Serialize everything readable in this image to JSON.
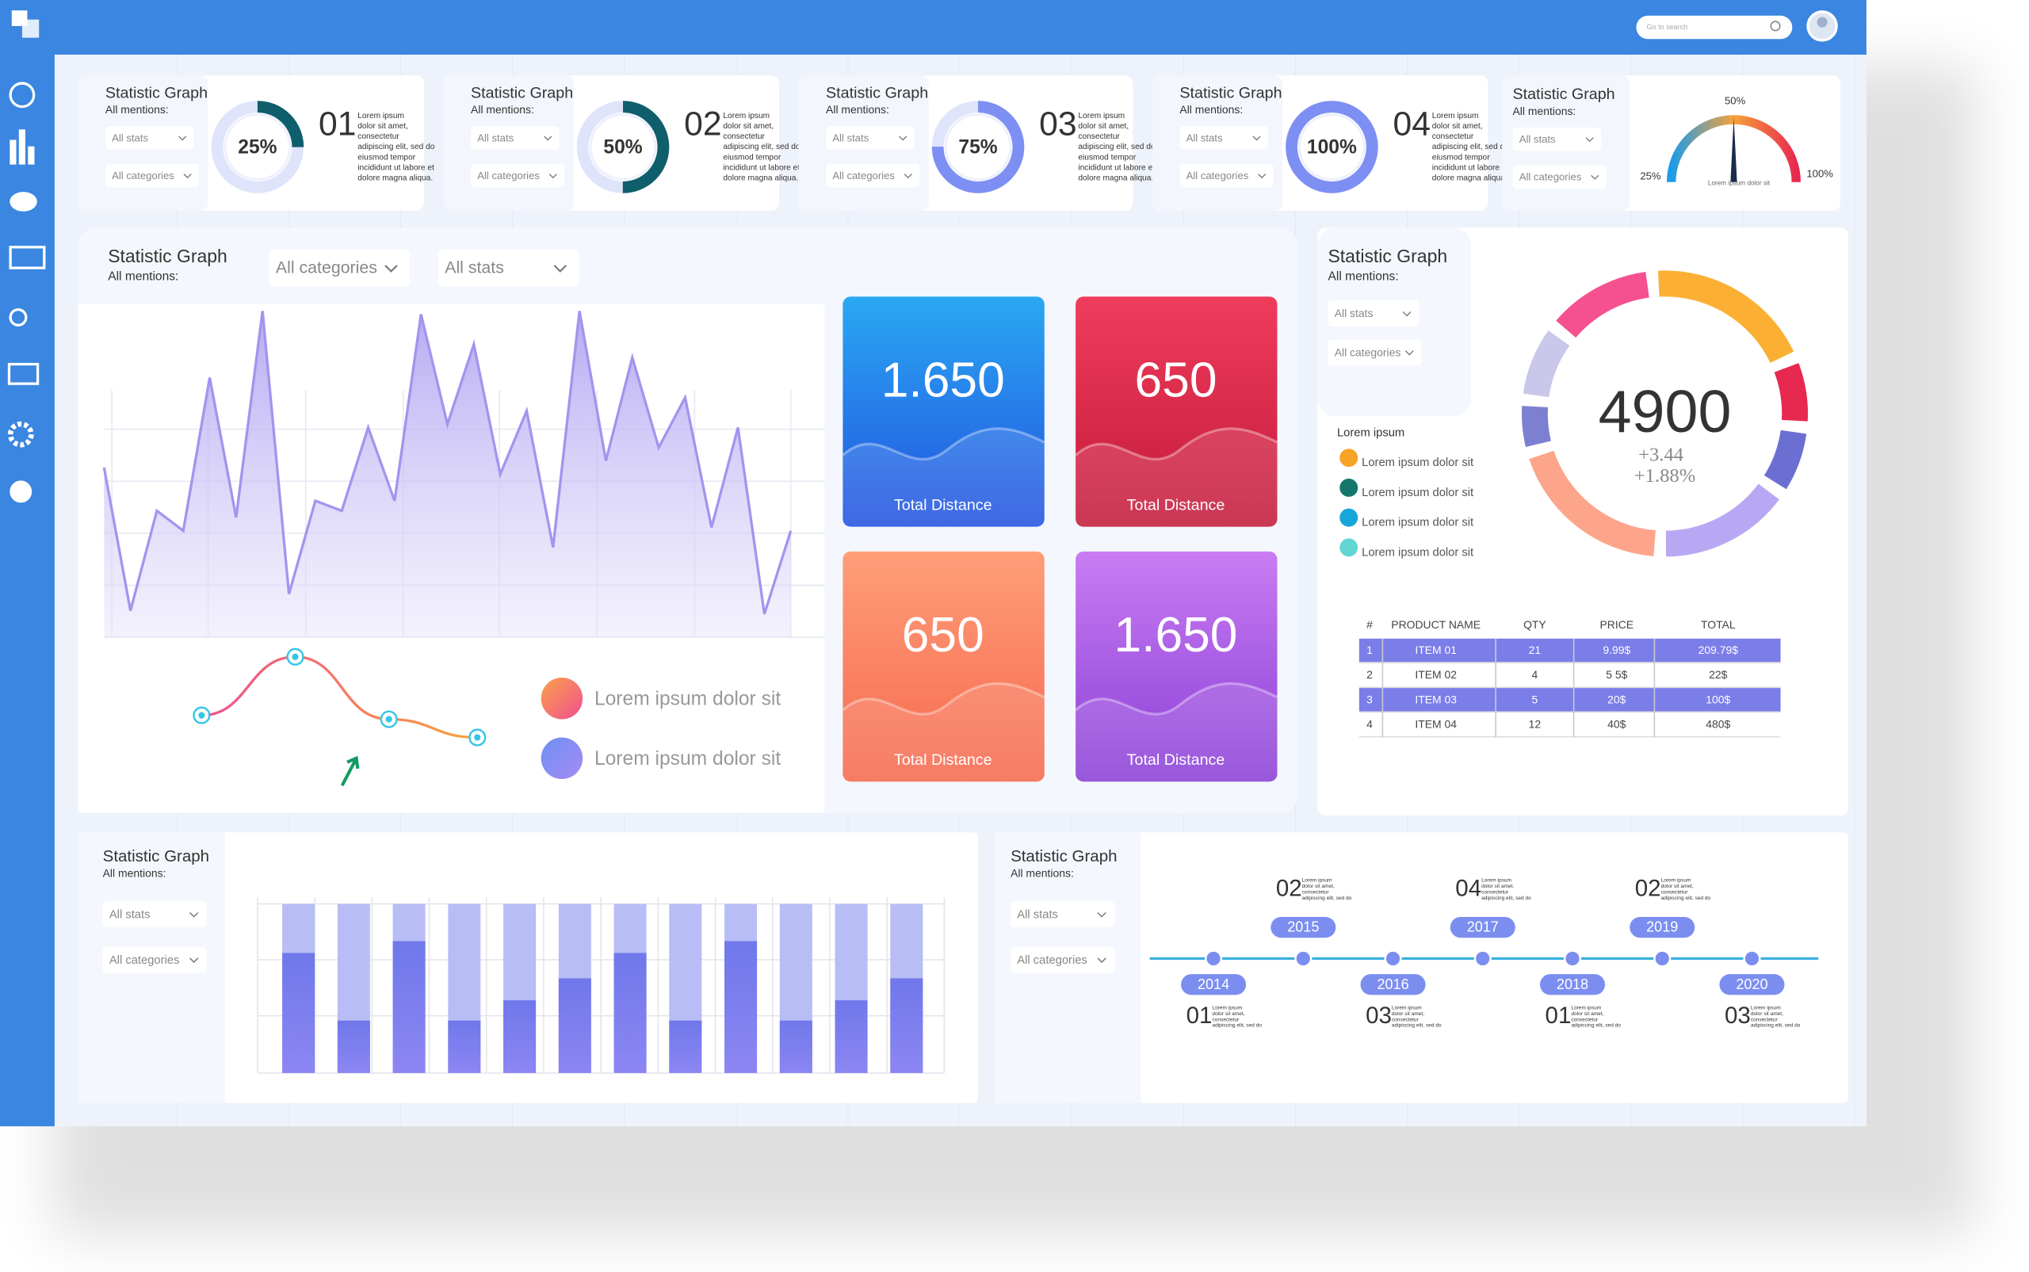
{
  "header": {
    "search_placeholder": "Go to search"
  },
  "cards": [
    {
      "title": "Statistic Graph",
      "subtitle": "All mentions:",
      "filters": [
        "All stats",
        "All categories"
      ],
      "donut": {
        "value": 25,
        "label": "25%"
      },
      "number": "01",
      "text": [
        "Lorem ipsum",
        "dolor sit amet,",
        "consectetur",
        "adipiscing elit, sed do",
        "eiusmod tempor",
        "incididunt ut labore et",
        "dolore magna aliqua."
      ]
    },
    {
      "title": "Statistic Graph",
      "subtitle": "All mentions:",
      "filters": [
        "All stats",
        "All categories"
      ],
      "donut": {
        "value": 50,
        "label": "50%"
      },
      "number": "02",
      "text": [
        "Lorem ipsum",
        "dolor sit amet,",
        "consectetur",
        "adipiscing elit, sed do",
        "eiusmod tempor",
        "incididunt ut labore et",
        "dolore magna aliqua."
      ]
    },
    {
      "title": "Statistic Graph",
      "subtitle": "All mentions:",
      "filters": [
        "All stats",
        "All categories"
      ],
      "donut": {
        "value": 75,
        "label": "75%"
      },
      "number": "03",
      "text": [
        "Lorem ipsum",
        "dolor sit amet,",
        "consectetur",
        "adipiscing elit, sed do",
        "eiusmod tempor",
        "incididunt ut labore et",
        "dolore magna aliqua."
      ]
    },
    {
      "title": "Statistic Graph",
      "subtitle": "All mentions:",
      "filters": [
        "All stats",
        "All categories"
      ],
      "donut": {
        "value": 100,
        "label": "100%"
      },
      "number": "04",
      "text": [
        "Lorem ipsum",
        "dolor sit amet,",
        "consectetur",
        "adipiscing elit, sed do",
        "eiusmod tempor",
        "incididunt ut labore et",
        "dolore magna aliqua."
      ]
    }
  ],
  "gauge_card": {
    "title": "Statistic Graph",
    "subtitle": "All mentions:",
    "filters": [
      "All stats",
      "All categories"
    ],
    "labels": [
      "25%",
      "50%",
      "100%"
    ],
    "caption": "Lorem ipsum  dolor sit"
  },
  "main_panel": {
    "title": "Statistic Graph",
    "subtitle": "All mentions:",
    "filters": [
      "All categories",
      "All stats"
    ],
    "area_chart": {
      "ylim": [
        0,
        100
      ],
      "values": [
        51,
        8,
        38,
        32,
        78,
        36,
        98,
        13,
        41,
        38,
        63,
        41,
        97,
        64,
        88,
        49,
        68,
        27,
        98,
        53,
        84,
        57,
        72,
        33,
        63,
        7,
        32
      ]
    },
    "line_chart": {
      "ylim": [
        0,
        100
      ],
      "values": [
        50,
        95,
        47,
        33
      ]
    },
    "legend": [
      "Lorem ipsum dolor sit",
      "Lorem ipsum dolor sit"
    ],
    "tiles": [
      {
        "value": "1.650",
        "label": "Total Distance"
      },
      {
        "value": "650",
        "label": "Total Distance"
      },
      {
        "value": "650",
        "label": "Total Distance"
      },
      {
        "value": "1.650",
        "label": "Total Distance"
      }
    ]
  },
  "side_panel": {
    "title": "Statistic Graph",
    "subtitle": "All mentions:",
    "filters": [
      "All stats",
      "All categories"
    ],
    "legend_title": "Lorem ipsum",
    "legend": [
      {
        "label": "Lorem ipsum  dolor sit",
        "color": "#f7a327"
      },
      {
        "label": "Lorem ipsum  dolor sit",
        "color": "#14776b"
      },
      {
        "label": "Lorem ipsum  dolor sit",
        "color": "#17a6da"
      },
      {
        "label": "Lorem ipsum  dolor sit",
        "color": "#62d6d3"
      }
    ],
    "donut": {
      "total": "4900",
      "changes": [
        "+3.44",
        "+1.88%"
      ],
      "segments": [
        13,
        20,
        8,
        8,
        16,
        20,
        6,
        9
      ],
      "colors": [
        "#f5508f",
        "#fbb034",
        "#e8294f",
        "#6b6fd1",
        "#b8a8f4",
        "#fda58a",
        "#7d80d0",
        "#c9c7ea"
      ]
    },
    "table": {
      "columns": [
        "#",
        "PRODUCT NAME",
        "QTY",
        "PRICE",
        "TOTAL"
      ],
      "rows": [
        [
          "1",
          "ITEM 01",
          "21",
          "9.99$",
          "209.79$"
        ],
        [
          "2",
          "ITEM 02",
          "4",
          "5 5$",
          "22$"
        ],
        [
          "3",
          "ITEM 03",
          "5",
          "20$",
          "100$"
        ],
        [
          "4",
          "ITEM 04",
          "12",
          "40$",
          "480$"
        ]
      ],
      "highlight_rows": [
        0,
        2
      ],
      "highlight_color": "#7b7de8"
    }
  },
  "bar_panel": {
    "title": "Statistic Graph",
    "subtitle": "All mentions:",
    "filters": [
      "All stats",
      "All categories"
    ],
    "chart": {
      "ylim": [
        0,
        100
      ],
      "totals": [
        100,
        100,
        100,
        100,
        100,
        100,
        100,
        100,
        100,
        100,
        100,
        100
      ],
      "values": [
        71,
        31,
        78,
        31,
        43,
        56,
        71,
        31,
        78,
        31,
        43,
        56
      ]
    }
  },
  "timeline_panel": {
    "title": "Statistic Graph",
    "subtitle": "All mentions:",
    "filters": [
      "All stats",
      "All categories"
    ],
    "events": [
      {
        "year": "2014",
        "number": "01",
        "text": [
          "Lorem ipsum",
          "dolor sit amet,",
          "consectetur",
          "adipiscing elit, sed do"
        ]
      },
      {
        "year": "2015",
        "number": "02",
        "text": [
          "Lorem ipsum",
          "dolor sit amet,",
          "consectetur",
          "adipiscing elit, sed do"
        ]
      },
      {
        "year": "2016",
        "number": "03",
        "text": [
          "Lorem ipsum",
          "dolor sit amet,",
          "consectetur",
          "adipiscing elit, sed do"
        ]
      },
      {
        "year": "2017",
        "number": "04",
        "text": [
          "Lorem ipsum",
          "dolor sit amet,",
          "consectetur",
          "adipiscing elit, sed do"
        ]
      },
      {
        "year": "2018",
        "number": "01",
        "text": [
          "Lorem ipsum",
          "dolor sit amet,",
          "consectetur",
          "adipiscing elit, sed do"
        ]
      },
      {
        "year": "2019",
        "number": "02",
        "text": [
          "Lorem ipsum",
          "dolor sit amet,",
          "consectetur",
          "adipiscing elit, sed do"
        ]
      },
      {
        "year": "2020",
        "number": "03",
        "text": [
          "Lorem ipsum",
          "dolor sit amet,",
          "consectetur",
          "adipiscing elit, sed do"
        ]
      }
    ]
  }
}
